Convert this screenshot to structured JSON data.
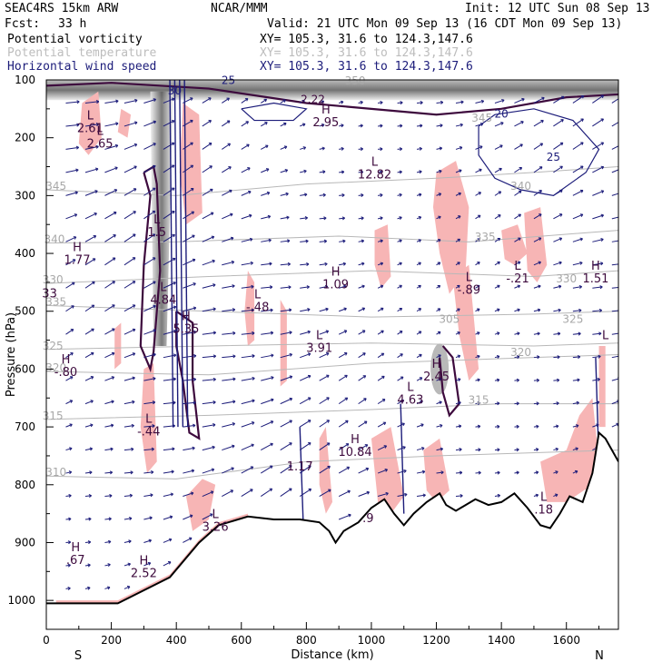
{
  "header": {
    "model": "SEAC4RS 15km ARW",
    "org": "NCAR/MMM",
    "init": "Init: 12 UTC Sun 08 Sep 13",
    "fcst_label": "Fcst:",
    "fcst_value": "33 h",
    "valid": "Valid: 21 UTC Mon 09 Sep 13 (16 CDT Mon 09 Sep 13)",
    "fields": [
      {
        "name": "Potential vorticity",
        "xy": "XY= 105.3, 31.6 to 124.3,147.6",
        "color": "#000000"
      },
      {
        "name": "Potential temperature",
        "xy": "XY= 105.3, 31.6 to 124.3,147.6",
        "color": "#bdbdbd"
      },
      {
        "name": "Horizontal wind speed",
        "xy": "XY= 105.3, 31.6 to 124.3,147.6",
        "color": "#1c1c7a"
      }
    ]
  },
  "colors": {
    "pink": "#f7b5b5",
    "pv": "#3d0a3d",
    "wind": "#1c1c7a",
    "theta": "#b8b8b8",
    "terrain": "#000000"
  },
  "chart_data": {
    "type": "cross-section",
    "xlabel": "Distance (km)",
    "ylabel": "Pressure (hPa)",
    "xlim": [
      0,
      1760
    ],
    "ylim": [
      1050,
      100
    ],
    "x_ticks": [
      0,
      200,
      400,
      600,
      800,
      1000,
      1200,
      1400,
      1600
    ],
    "y_ticks": [
      100,
      200,
      300,
      400,
      500,
      600,
      700,
      800,
      900,
      1000
    ],
    "endpoints": {
      "left": "S",
      "right": "N"
    },
    "terrain_pressure": [
      [
        0,
        1005
      ],
      [
        220,
        1005
      ],
      [
        380,
        960
      ],
      [
        470,
        900
      ],
      [
        530,
        870
      ],
      [
        620,
        855
      ],
      [
        700,
        860
      ],
      [
        780,
        860
      ],
      [
        840,
        865
      ],
      [
        870,
        880
      ],
      [
        890,
        900
      ],
      [
        915,
        880
      ],
      [
        960,
        865
      ],
      [
        1000,
        840
      ],
      [
        1040,
        825
      ],
      [
        1070,
        850
      ],
      [
        1100,
        870
      ],
      [
        1130,
        850
      ],
      [
        1170,
        830
      ],
      [
        1210,
        815
      ],
      [
        1230,
        835
      ],
      [
        1260,
        845
      ],
      [
        1290,
        835
      ],
      [
        1320,
        825
      ],
      [
        1360,
        835
      ],
      [
        1400,
        830
      ],
      [
        1440,
        815
      ],
      [
        1480,
        840
      ],
      [
        1520,
        870
      ],
      [
        1550,
        875
      ],
      [
        1580,
        850
      ],
      [
        1610,
        820
      ],
      [
        1650,
        830
      ],
      [
        1680,
        780
      ],
      [
        1700,
        710
      ],
      [
        1720,
        720
      ],
      [
        1760,
        760
      ]
    ],
    "theta_labels": [
      {
        "text": "345",
        "x": 30,
        "p": 290
      },
      {
        "text": "340",
        "x": 25,
        "p": 382
      },
      {
        "text": "335",
        "x": 30,
        "p": 490
      },
      {
        "text": "330",
        "x": 20,
        "p": 452
      },
      {
        "text": "325",
        "x": 20,
        "p": 566
      },
      {
        "text": "320",
        "x": 30,
        "p": 604
      },
      {
        "text": "315",
        "x": 20,
        "p": 687
      },
      {
        "text": "310",
        "x": 30,
        "p": 785
      },
      {
        "text": "350",
        "x": 950,
        "p": 108
      },
      {
        "text": "345",
        "x": 1340,
        "p": 172
      },
      {
        "text": "340",
        "x": 1460,
        "p": 290
      },
      {
        "text": "335",
        "x": 1350,
        "p": 378
      },
      {
        "text": "330",
        "x": 1600,
        "p": 450
      },
      {
        "text": "325",
        "x": 1620,
        "p": 520
      },
      {
        "text": "320",
        "x": 1460,
        "p": 577
      },
      {
        "text": "315",
        "x": 1330,
        "p": 660
      },
      {
        "text": "305",
        "x": 1240,
        "p": 520
      }
    ],
    "wind_contour_labels": [
      {
        "text": "20",
        "x": 1400,
        "p": 165
      },
      {
        "text": "25",
        "x": 1560,
        "p": 240
      },
      {
        "text": "30",
        "x": 395,
        "p": 125
      },
      {
        "text": "25",
        "x": 560,
        "p": 107
      }
    ],
    "pv_labels": [
      {
        "text": "2.22",
        "x": 820,
        "p": 140
      }
    ],
    "highs_lows": [
      {
        "type": "L",
        "value": "2.61",
        "x": 135,
        "p": 190
      },
      {
        "type": "L",
        "value": "2.65",
        "x": 165,
        "p": 217
      },
      {
        "type": "H",
        "value": "1.77",
        "x": 95,
        "p": 418
      },
      {
        "type": "",
        "value": "33",
        "x": 10,
        "p": 476
      },
      {
        "type": "L",
        "value": "4.84",
        "x": 360,
        "p": 487
      },
      {
        "type": "L",
        "value": "1.5",
        "x": 340,
        "p": 370
      },
      {
        "type": "H",
        "value": "5.35",
        "x": 430,
        "p": 537
      },
      {
        "type": "L",
        "value": "-.48",
        "x": 650,
        "p": 500
      },
      {
        "type": "H",
        "value": "1.09",
        "x": 890,
        "p": 460
      },
      {
        "type": "L",
        "value": "3.91",
        "x": 840,
        "p": 570
      },
      {
        "type": "H",
        "value": "2.95",
        "x": 860,
        "p": 180
      },
      {
        "type": "L",
        "value": "12.82",
        "x": 1010,
        "p": 270
      },
      {
        "type": "L",
        "value": "-.89",
        "x": 1300,
        "p": 470
      },
      {
        "type": "L",
        "value": "-.21",
        "x": 1450,
        "p": 450
      },
      {
        "type": "H",
        "value": "1.51",
        "x": 1690,
        "p": 450
      },
      {
        "type": "H",
        "value": "-.80",
        "x": 60,
        "p": 612
      },
      {
        "type": "H",
        "value": "2.45",
        "x": 1200,
        "p": 620
      },
      {
        "type": "L",
        "value": "4.63",
        "x": 1120,
        "p": 660
      },
      {
        "type": "L",
        "value": "-.44",
        "x": 315,
        "p": 715
      },
      {
        "type": "H",
        "value": "10.84",
        "x": 950,
        "p": 750
      },
      {
        "type": "",
        "value": "1.17",
        "x": 780,
        "p": 775
      },
      {
        "type": "L",
        "value": "3.26",
        "x": 520,
        "p": 880
      },
      {
        "type": "H",
        "value": ".67",
        "x": 90,
        "p": 937
      },
      {
        "type": "H",
        "value": "2.52",
        "x": 300,
        "p": 960
      },
      {
        "type": "L",
        "value": ".18",
        "x": 1530,
        "p": 850
      },
      {
        "type": "",
        "value": ".9",
        "x": 990,
        "p": 865
      },
      {
        "type": "L",
        "value": "",
        "x": 1720,
        "p": 570
      }
    ]
  }
}
